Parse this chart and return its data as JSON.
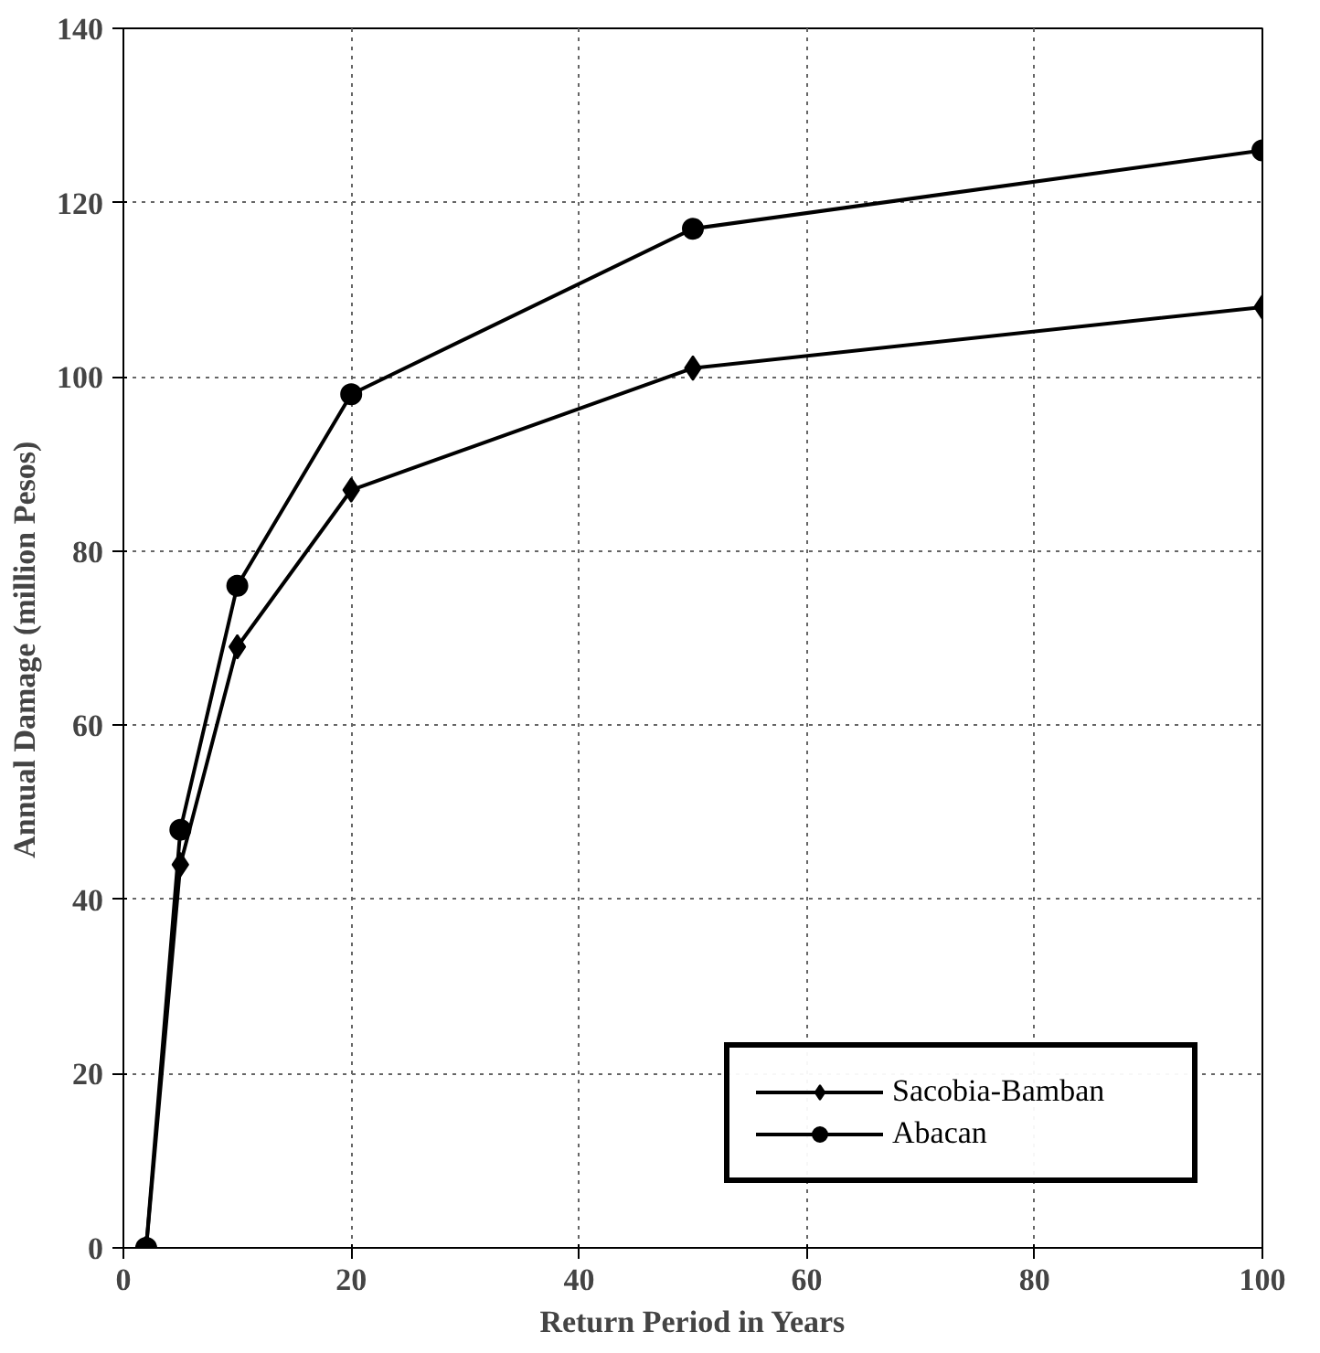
{
  "chart_data": {
    "type": "line",
    "xlabel": "Return Period in Years",
    "ylabel": "Annual  Damage  (million  Pesos)",
    "series": [
      {
        "name": "Sacobia-Bamban",
        "color": "#000000",
        "marker": "diamond",
        "x": [
          2,
          5,
          10,
          20,
          50,
          100
        ],
        "values": [
          0,
          44,
          69,
          87,
          101,
          108
        ]
      },
      {
        "name": "Abacan",
        "color": "#000000",
        "marker": "circle",
        "x": [
          2,
          5,
          10,
          20,
          50,
          100
        ],
        "values": [
          0,
          48,
          76,
          98,
          117,
          126
        ]
      }
    ],
    "xlim": [
      0,
      100
    ],
    "xticks": [
      0,
      20,
      40,
      60,
      80,
      100
    ],
    "ylim": [
      0,
      140
    ],
    "yticks": [
      0,
      20,
      40,
      60,
      80,
      100,
      120,
      140
    ],
    "grid": true,
    "legend": "bottom right",
    "line_style": "solid"
  }
}
